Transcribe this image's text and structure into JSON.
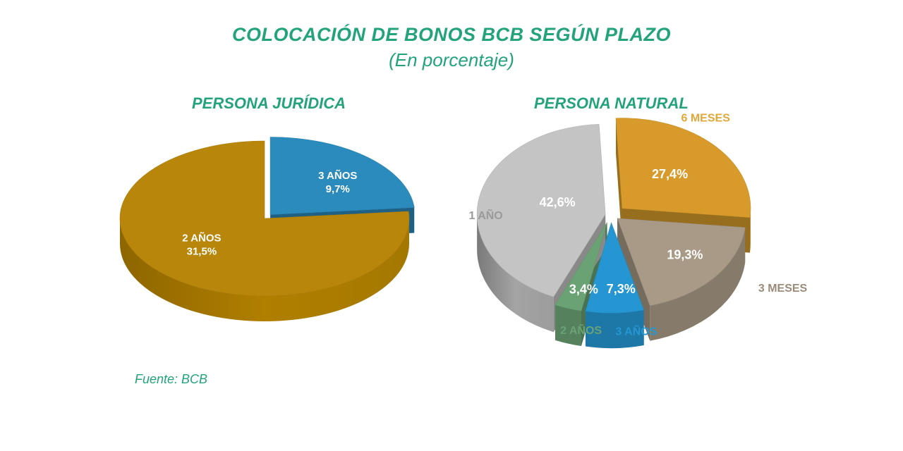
{
  "title": "COLOCACIÓN DE BONOS BCB SEGÚN PLAZO",
  "subtitle": "(En porcentaje)",
  "source": "Fuente: BCB",
  "chart_data": [
    {
      "type": "pie",
      "title": "PERSONA JURÍDICA",
      "slices": [
        {
          "label": "3 AÑOS",
          "value": 9.7,
          "value_text": "9,7%",
          "color": "#2b8bbd"
        },
        {
          "label": "2 AÑOS",
          "value": 31.5,
          "value_text": "31,5%",
          "color": "#b8860b"
        }
      ]
    },
    {
      "type": "pie",
      "title": "PERSONA NATURAL",
      "slices": [
        {
          "label": "6 MESES",
          "value": 27.4,
          "value_text": "27,4%",
          "color": "#d89b2b"
        },
        {
          "label": "3 MESES",
          "value": 19.3,
          "value_text": "19,3%",
          "color": "#a89a86"
        },
        {
          "label": "3 AÑOS",
          "value": 7.3,
          "value_text": "7,3%",
          "color": "#2596d1"
        },
        {
          "label": "2 AÑOS",
          "value": 3.4,
          "value_text": "3,4%",
          "color": "#6aa274"
        },
        {
          "label": "1 AÑO",
          "value": 42.6,
          "value_text": "42,6%",
          "color": "#c4c4c4"
        }
      ]
    }
  ]
}
